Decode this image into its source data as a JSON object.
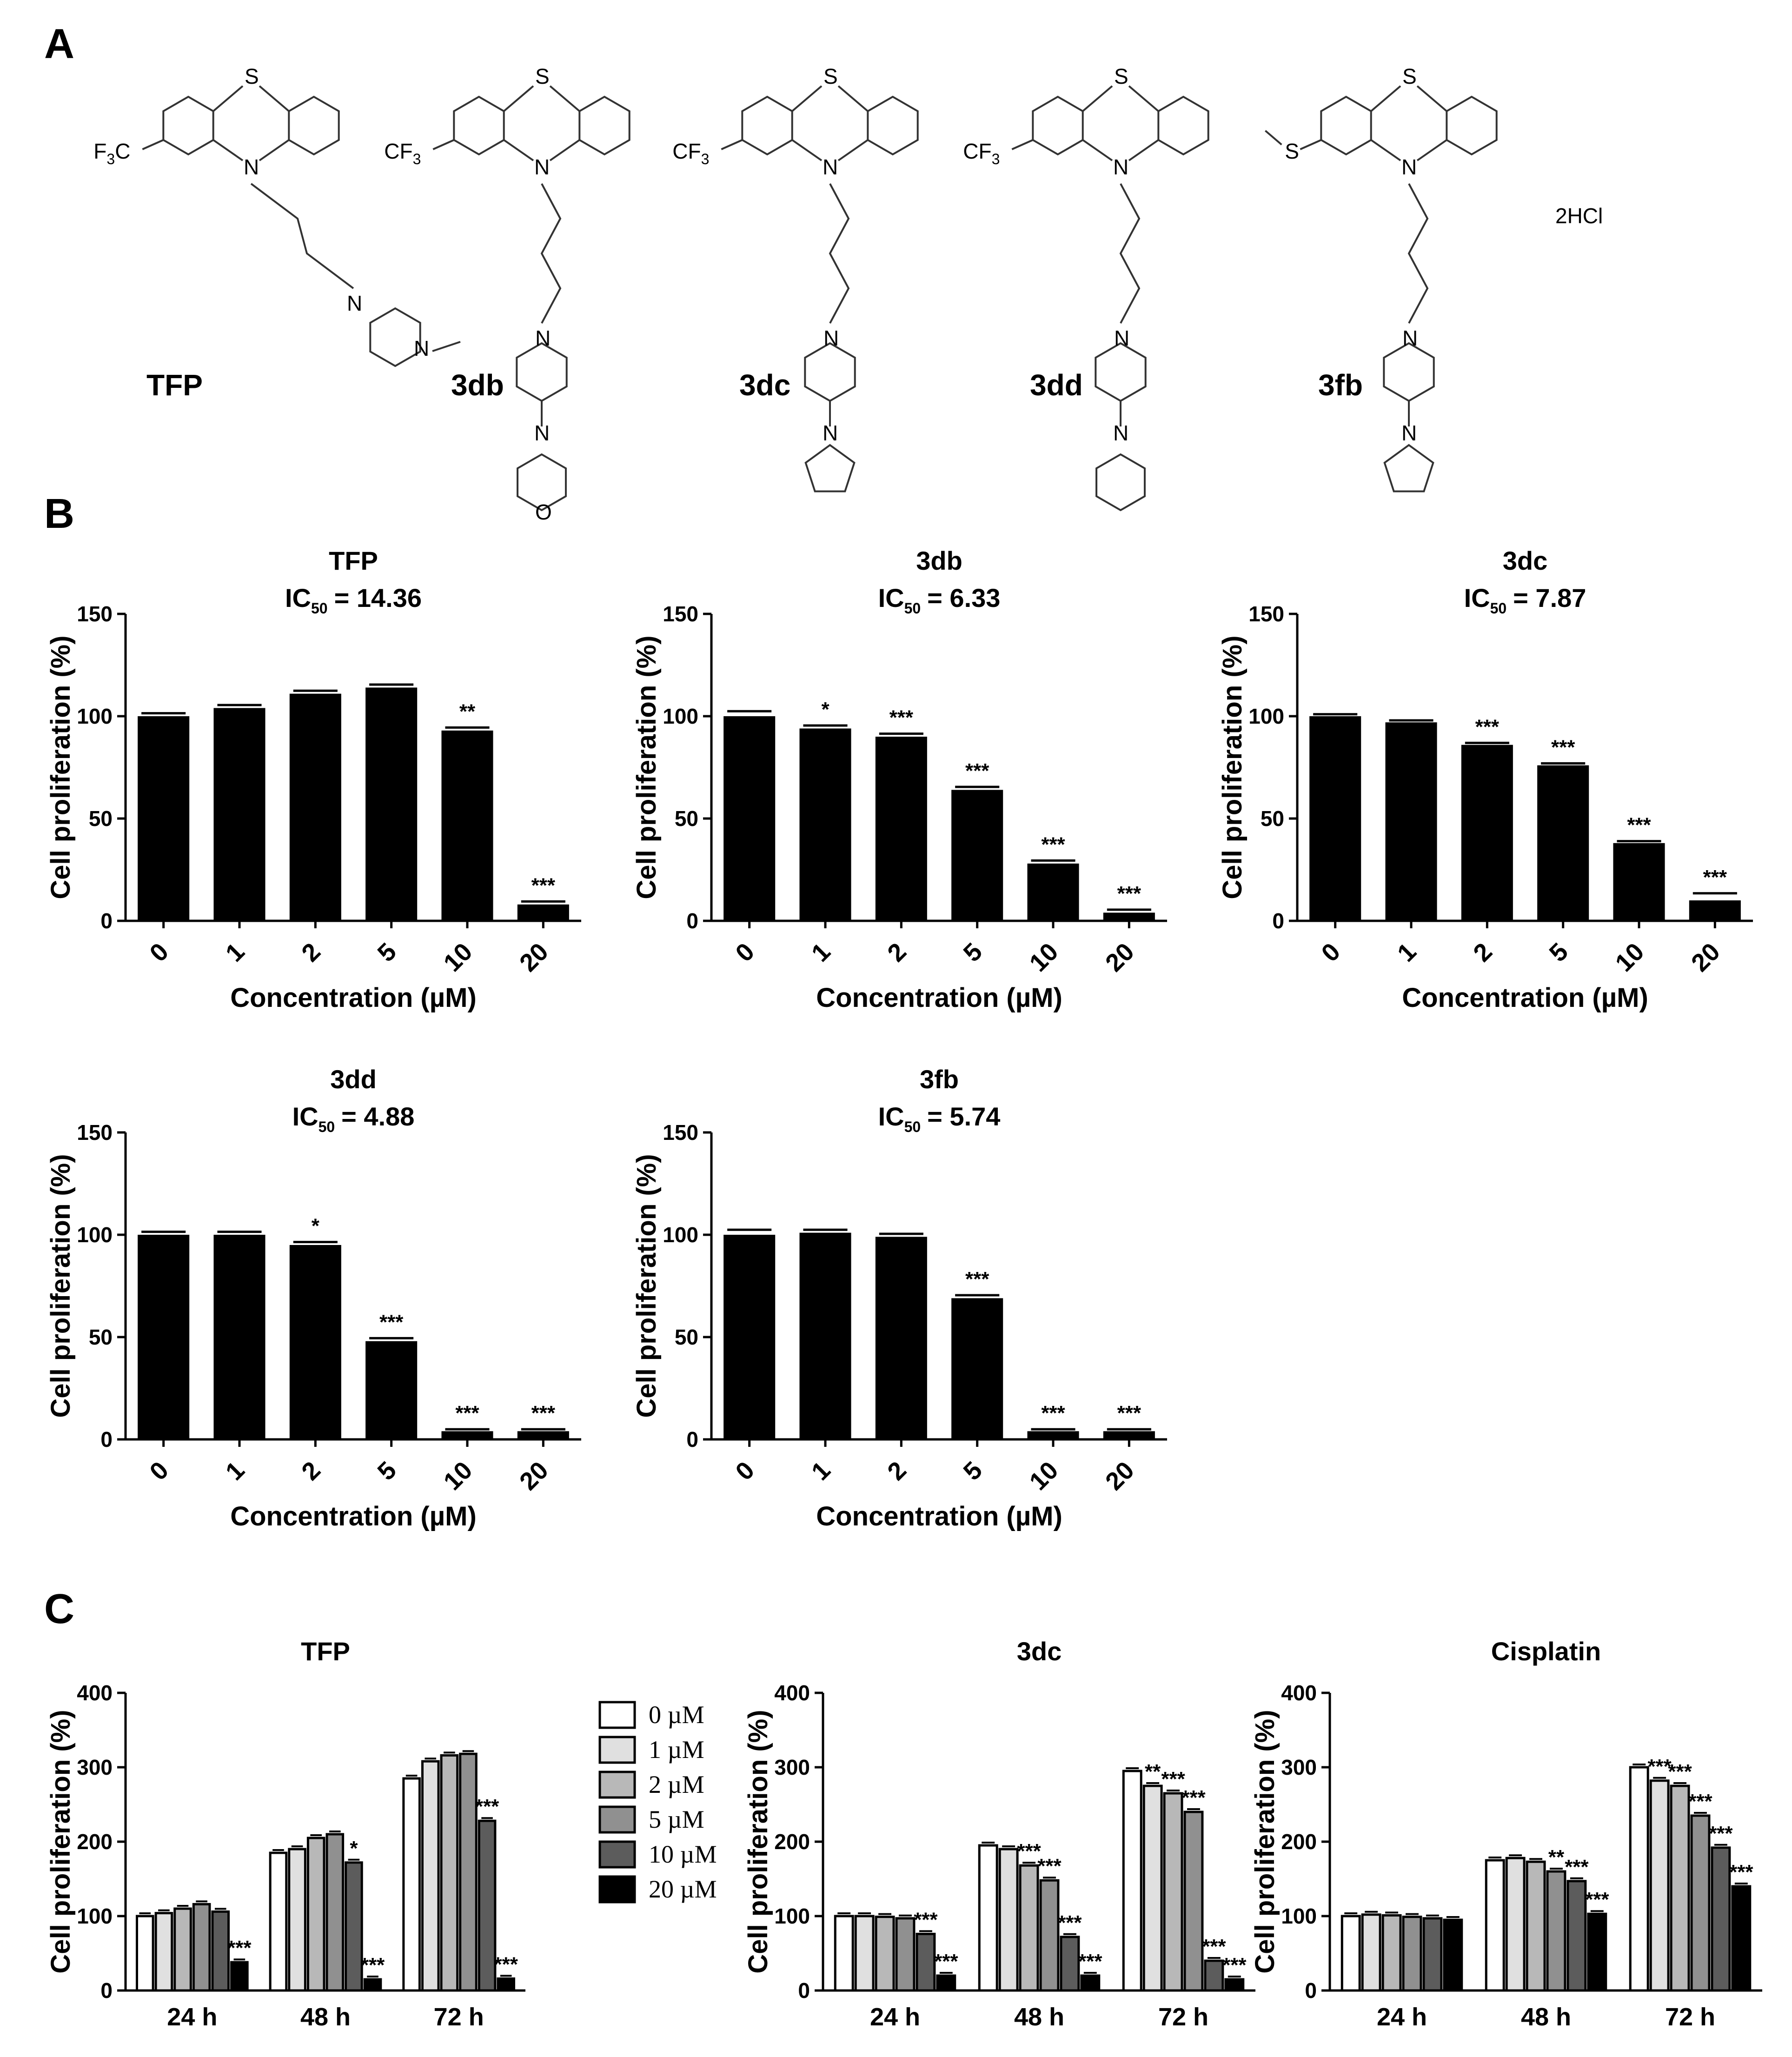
{
  "figure": {
    "panel_labels": [
      "A",
      "B",
      "C"
    ],
    "structures": [
      {
        "name": "TFP",
        "substituent": "F3C",
        "tail": "methylpiperazine",
        "salt": ""
      },
      {
        "name": "3db",
        "substituent": "CF3",
        "tail": "morpholine",
        "salt": ""
      },
      {
        "name": "3dc",
        "substituent": "CF3",
        "tail": "pyrrolidine",
        "salt": ""
      },
      {
        "name": "3dd",
        "substituent": "CF3",
        "tail": "piperidine",
        "salt": ""
      },
      {
        "name": "3fb",
        "substituent": "S-methyl",
        "tail": "pyrrolidine",
        "salt": "2HCl"
      }
    ]
  },
  "chart_data": [
    {
      "panel": "B",
      "type": "bar",
      "title": "TFP",
      "ic50_prefix": "IC",
      "ic50_sub": "50",
      "ic50_value": "= 14.36",
      "categories": [
        "0",
        "1",
        "2",
        "5",
        "10",
        "20"
      ],
      "values": [
        100,
        104,
        111,
        114,
        93,
        8
      ],
      "errors": [
        1,
        1,
        1,
        1,
        1,
        1
      ],
      "stars": [
        "",
        "",
        "",
        "",
        "**",
        "***"
      ],
      "xlabel": "Concentration (µM)",
      "ylabel": "Cell proliferation (%)",
      "ylim": [
        0,
        150
      ],
      "yticks": [
        0,
        50,
        100,
        150
      ]
    },
    {
      "panel": "B",
      "type": "bar",
      "title": "3db",
      "ic50_prefix": "IC",
      "ic50_sub": "50",
      "ic50_value": "= 6.33",
      "categories": [
        "0",
        "1",
        "2",
        "5",
        "10",
        "20"
      ],
      "values": [
        100,
        94,
        90,
        64,
        28,
        4
      ],
      "errors": [
        2,
        1,
        1,
        1,
        1,
        1
      ],
      "stars": [
        "",
        "*",
        "***",
        "***",
        "***",
        "***"
      ],
      "xlabel": "Concentration (µM)",
      "ylabel": "Cell proliferation (%)",
      "ylim": [
        0,
        150
      ],
      "yticks": [
        0,
        50,
        100,
        150
      ]
    },
    {
      "panel": "B",
      "type": "bar",
      "title": "3dc",
      "ic50_prefix": "IC",
      "ic50_sub": "50",
      "ic50_value": "= 7.87",
      "categories": [
        "0",
        "1",
        "2",
        "5",
        "10",
        "20"
      ],
      "values": [
        100,
        97,
        86,
        76,
        38,
        10
      ],
      "errors": [
        0.5,
        0.5,
        0.5,
        0.5,
        0.5,
        3
      ],
      "stars": [
        "",
        "",
        "***",
        "***",
        "***",
        "***"
      ],
      "xlabel": "Concentration (µM)",
      "ylabel": "Cell proliferation (%)",
      "ylim": [
        0,
        150
      ],
      "yticks": [
        0,
        50,
        100,
        150
      ]
    },
    {
      "panel": "B",
      "type": "bar",
      "title": "3dd",
      "ic50_prefix": "IC",
      "ic50_sub": "50",
      "ic50_value": "= 4.88",
      "categories": [
        "0",
        "1",
        "2",
        "5",
        "10",
        "20"
      ],
      "values": [
        100,
        100,
        95,
        48,
        4,
        4
      ],
      "errors": [
        1,
        1,
        1,
        1,
        0.5,
        0.5
      ],
      "stars": [
        "",
        "",
        "*",
        "***",
        "***",
        "***"
      ],
      "xlabel": "Concentration (µM)",
      "ylabel": "Cell proliferation (%)",
      "ylim": [
        0,
        150
      ],
      "yticks": [
        0,
        50,
        100,
        150
      ]
    },
    {
      "panel": "B",
      "type": "bar",
      "title": "3fb",
      "ic50_prefix": "IC",
      "ic50_sub": "50",
      "ic50_value": "= 5.74",
      "categories": [
        "0",
        "1",
        "2",
        "5",
        "10",
        "20"
      ],
      "values": [
        100,
        101,
        99,
        69,
        4,
        4
      ],
      "errors": [
        2,
        1,
        1,
        1,
        0.5,
        0.5
      ],
      "stars": [
        "",
        "",
        "",
        "***",
        "***",
        "***"
      ],
      "xlabel": "Concentration (µM)",
      "ylabel": "Cell proliferation (%)",
      "ylim": [
        0,
        150
      ],
      "yticks": [
        0,
        50,
        100,
        150
      ]
    },
    {
      "panel": "C",
      "type": "bar",
      "title": "TFP",
      "categories": [
        "24 h",
        "48 h",
        "72 h"
      ],
      "series": [
        {
          "name": "0 µM",
          "values": [
            100,
            185,
            285
          ]
        },
        {
          "name": "1 µM",
          "values": [
            104,
            190,
            308
          ]
        },
        {
          "name": "2 µM",
          "values": [
            110,
            205,
            316
          ]
        },
        {
          "name": "5 µM",
          "values": [
            116,
            210,
            318
          ]
        },
        {
          "name": "10 µM",
          "values": [
            106,
            172,
            228
          ]
        },
        {
          "name": "20 µM",
          "values": [
            38,
            15,
            16
          ]
        }
      ],
      "stars": [
        [
          "",
          "",
          "",
          "",
          "",
          "***"
        ],
        [
          "",
          "",
          "",
          "",
          "*",
          "***"
        ],
        [
          "",
          "",
          "",
          "",
          "***",
          "***"
        ]
      ],
      "ylabel": "Cell proliferation (%)",
      "ylim": [
        0,
        400
      ],
      "yticks": [
        0,
        100,
        200,
        300,
        400
      ]
    },
    {
      "panel": "C",
      "type": "bar",
      "title": "3dc",
      "categories": [
        "24 h",
        "48 h",
        "72 h"
      ],
      "series": [
        {
          "name": "0 µM",
          "values": [
            100,
            195,
            295
          ]
        },
        {
          "name": "1 µM",
          "values": [
            100,
            190,
            275
          ]
        },
        {
          "name": "2 µM",
          "values": [
            99,
            168,
            265
          ]
        },
        {
          "name": "5 µM",
          "values": [
            97,
            148,
            240
          ]
        },
        {
          "name": "10 µM",
          "values": [
            76,
            72,
            40
          ]
        },
        {
          "name": "20 µM",
          "values": [
            20,
            20,
            15
          ]
        }
      ],
      "stars": [
        [
          "",
          "",
          "",
          "",
          "***",
          "***"
        ],
        [
          "",
          "",
          "***",
          "***",
          "***",
          "***"
        ],
        [
          "",
          "**",
          "***",
          "***",
          "***",
          "***"
        ]
      ],
      "ylabel": "Cell proliferation (%)",
      "ylim": [
        0,
        400
      ],
      "yticks": [
        0,
        100,
        200,
        300,
        400
      ]
    },
    {
      "panel": "C",
      "type": "bar",
      "title": "Cisplatin",
      "categories": [
        "24 h",
        "48 h",
        "72 h"
      ],
      "series": [
        {
          "name": "0 µM",
          "values": [
            100,
            175,
            300
          ]
        },
        {
          "name": "1 µM",
          "values": [
            102,
            178,
            282
          ]
        },
        {
          "name": "2 µM",
          "values": [
            101,
            173,
            275
          ]
        },
        {
          "name": "5 µM",
          "values": [
            99,
            160,
            235
          ]
        },
        {
          "name": "10 µM",
          "values": [
            97,
            147,
            192
          ]
        },
        {
          "name": "20 µM",
          "values": [
            95,
            103,
            140
          ]
        }
      ],
      "stars": [
        [
          "",
          "",
          "",
          "",
          "",
          ""
        ],
        [
          "",
          "",
          "",
          "**",
          "***",
          "***"
        ],
        [
          "",
          "***",
          "***",
          "***",
          "***",
          "***"
        ]
      ],
      "ylabel": "Cell proliferation (%)",
      "ylim": [
        0,
        400
      ],
      "yticks": [
        0,
        100,
        200,
        300,
        400
      ]
    }
  ],
  "legend": {
    "items": [
      "0 µM",
      "1 µM",
      "2 µM",
      "5 µM",
      "10 µM",
      "20 µM"
    ],
    "colors": [
      "#ffffff",
      "#e0e0e0",
      "#b8b8b8",
      "#909090",
      "#5c5c5c",
      "#000000"
    ]
  }
}
